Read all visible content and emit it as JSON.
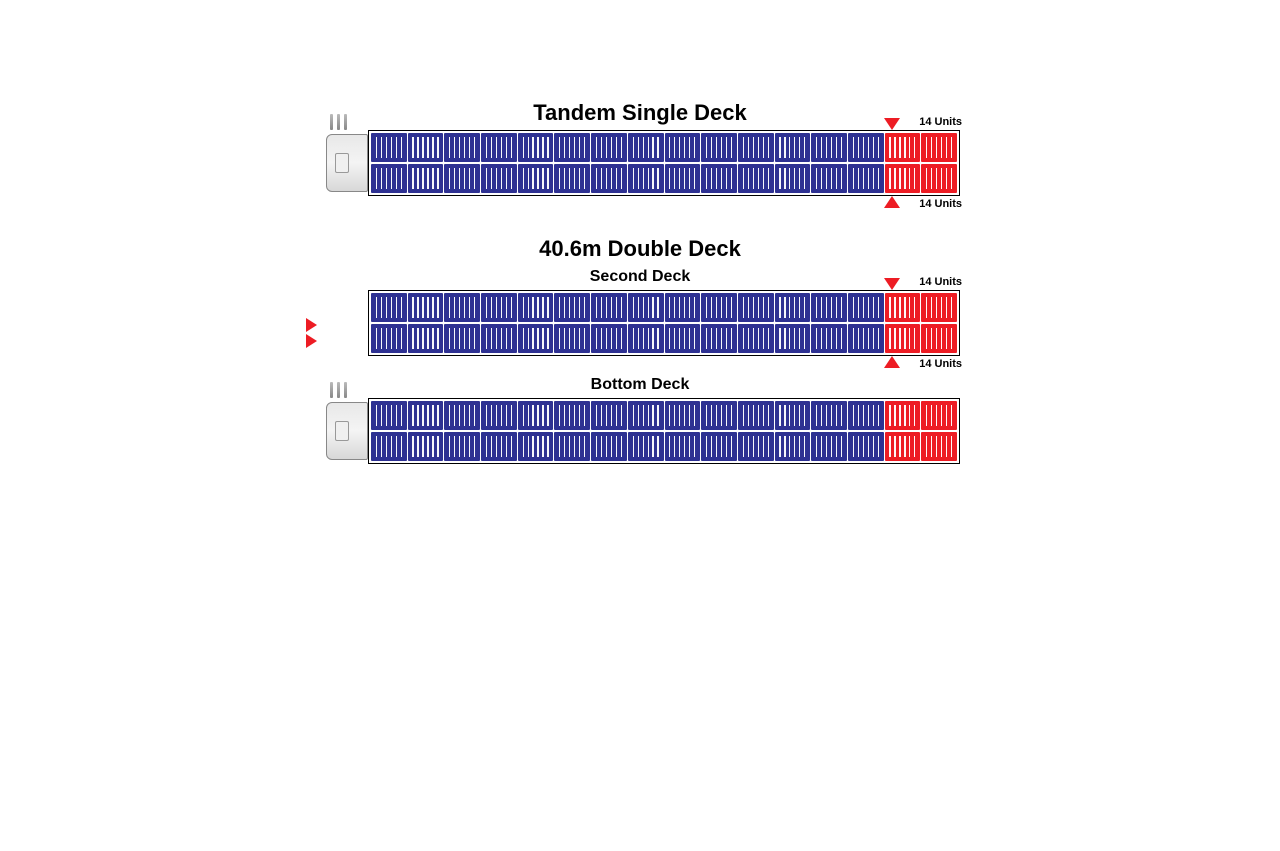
{
  "colors": {
    "blue": "#2e3192",
    "red": "#ed1c24",
    "border": "#000000",
    "bg": "#ffffff",
    "text": "#000000"
  },
  "pallet_slat_count": 6,
  "diagrams": [
    {
      "id": "single",
      "title": "Tandem Single Deck",
      "show_cab": true,
      "rows": 2,
      "columns": 16,
      "red_columns_from_end": 2,
      "labels": {
        "top": "14 Units",
        "bottom": "14 Units"
      },
      "arrow_col_from_end": 2
    },
    {
      "id": "double",
      "title": "40.6m Double Deck",
      "sub_decks": [
        {
          "label": "Second Deck",
          "show_cab": false,
          "rows": 2,
          "columns": 16,
          "red_columns_from_end": 2,
          "labels": {
            "top": "14 Units",
            "bottom": "14 Units"
          },
          "arrow_col_from_end": 2
        },
        {
          "label": "Bottom Deck",
          "show_cab": true,
          "rows": 2,
          "columns": 16,
          "red_columns_from_end": 2,
          "labels": null,
          "arrow_col_from_end": null
        }
      ]
    }
  ],
  "title_fontsize": 22,
  "subtitle_fontsize": 16,
  "label_fontsize": 11
}
